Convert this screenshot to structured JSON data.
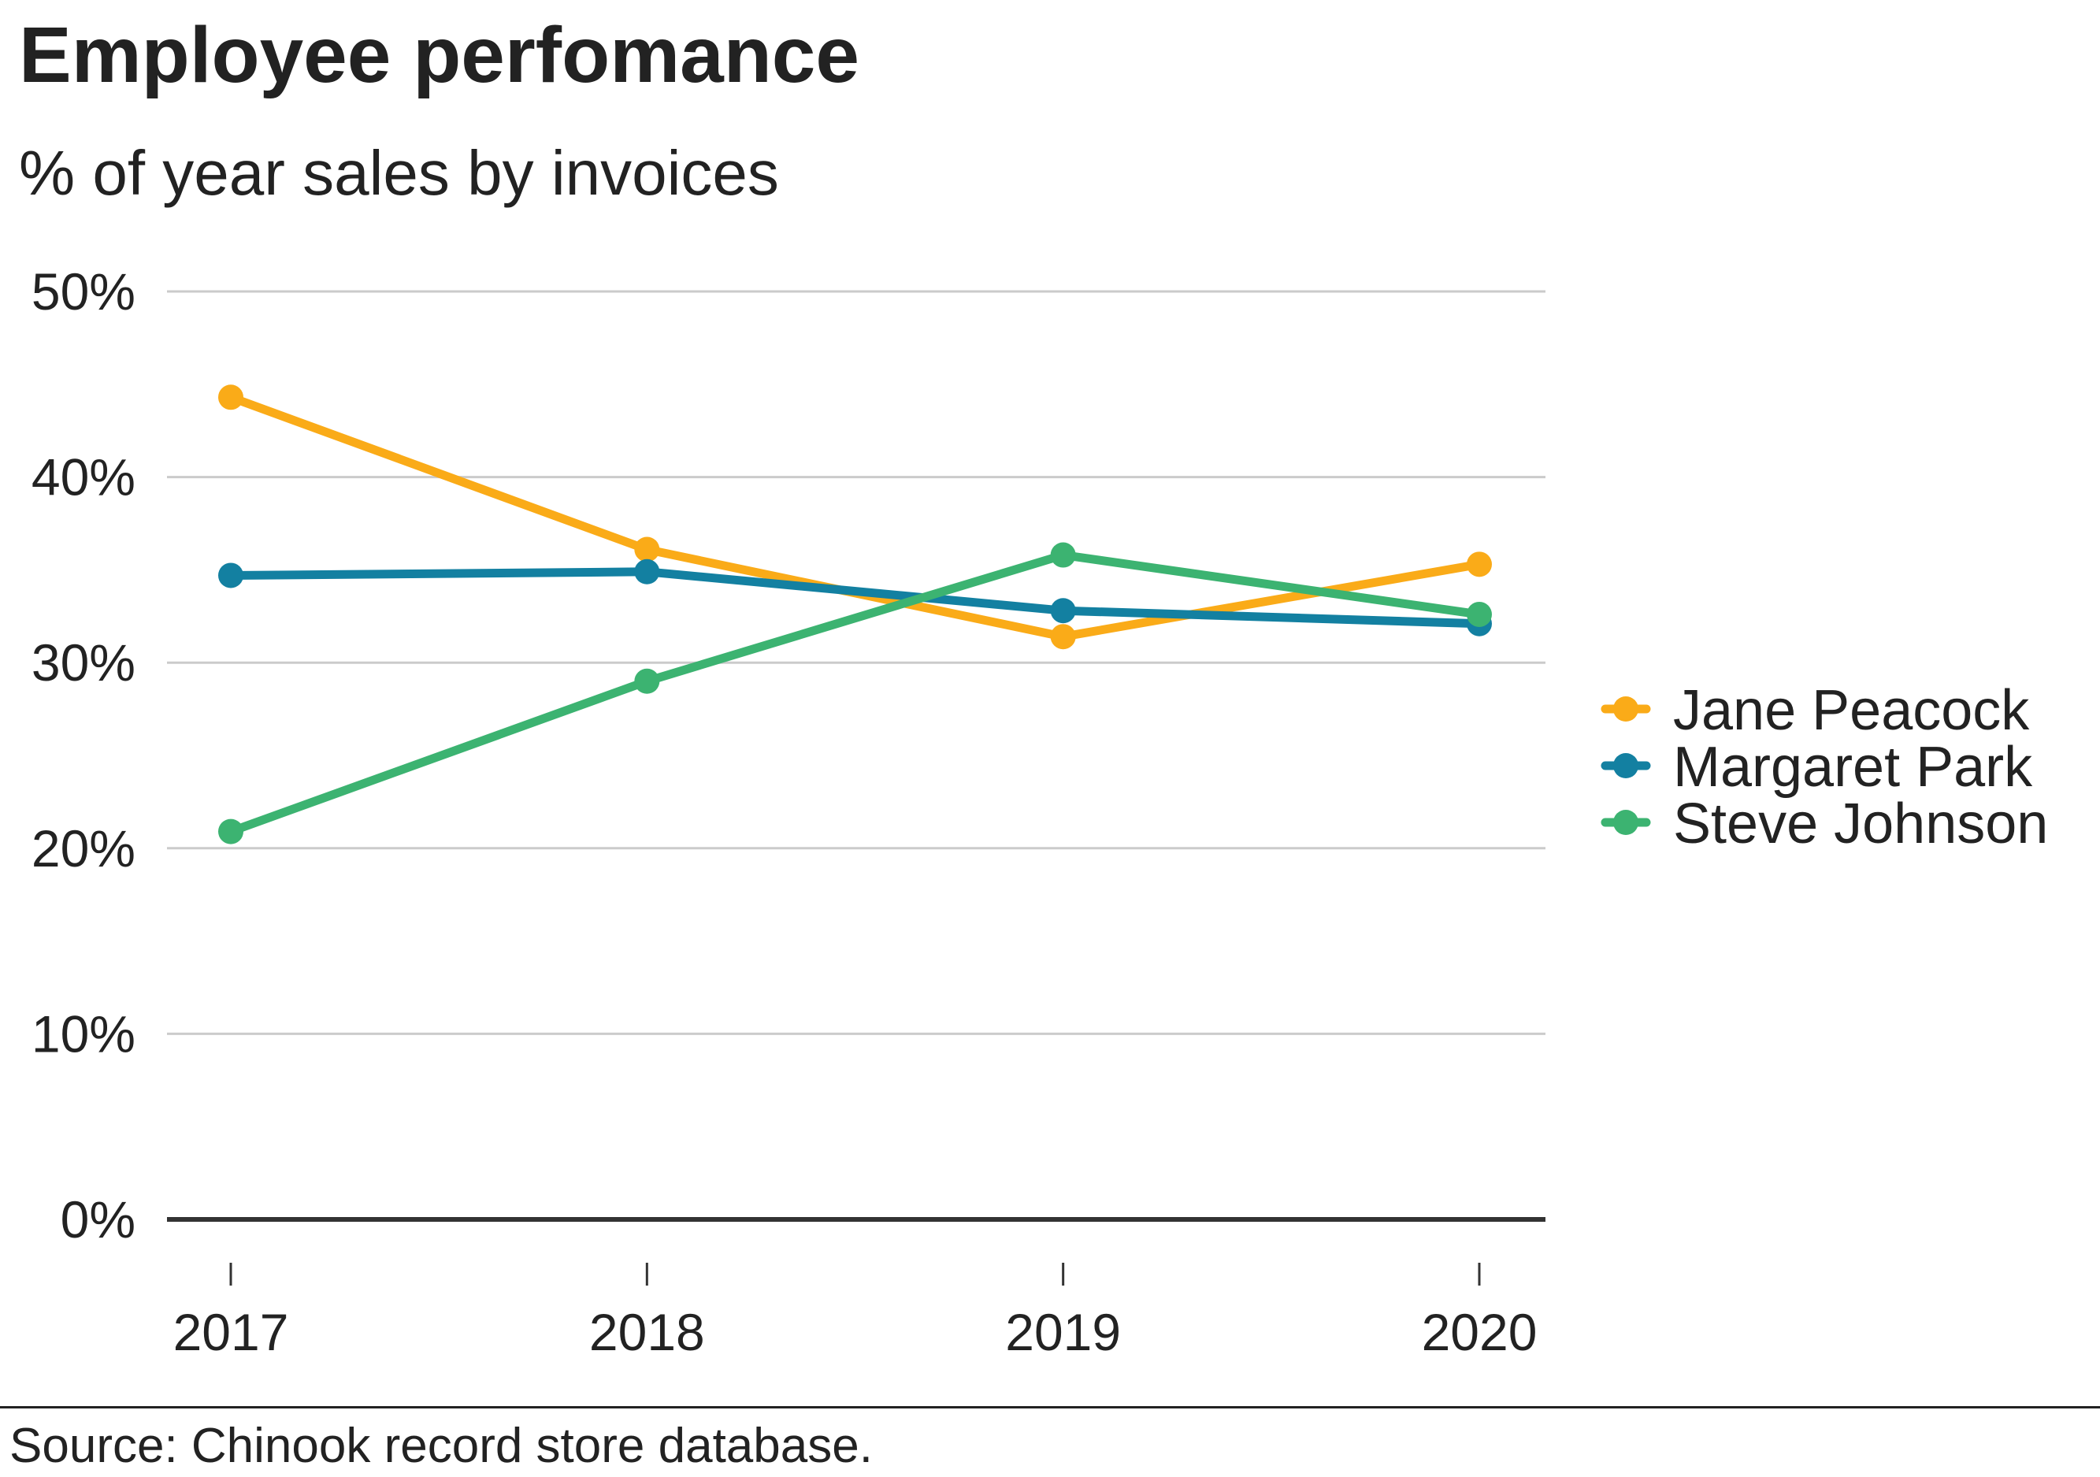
{
  "chart_data": {
    "type": "line",
    "title": "Employee perfomance",
    "subtitle": "% of year sales by invoices",
    "source": "Source: Chinook record store database.",
    "categories": [
      "2017",
      "2018",
      "2019",
      "2020"
    ],
    "y_ticks": [
      0,
      10,
      20,
      30,
      40,
      50
    ],
    "y_tick_labels": [
      "0%",
      "10%",
      "20%",
      "30%",
      "40%",
      "50%"
    ],
    "ylim": [
      0,
      50
    ],
    "y_unit": "%",
    "grid": true,
    "legend_position": "right",
    "series": [
      {
        "name": "Jane Peacock",
        "color": "#FAAB18",
        "values": [
          44.3,
          36.1,
          31.4,
          35.3
        ]
      },
      {
        "name": "Margaret Park",
        "color": "#1380A1",
        "values": [
          34.7,
          34.9,
          32.8,
          32.1
        ]
      },
      {
        "name": "Steve Johnson",
        "color": "#3CB371",
        "values": [
          20.9,
          29.0,
          35.8,
          32.6
        ]
      }
    ]
  }
}
